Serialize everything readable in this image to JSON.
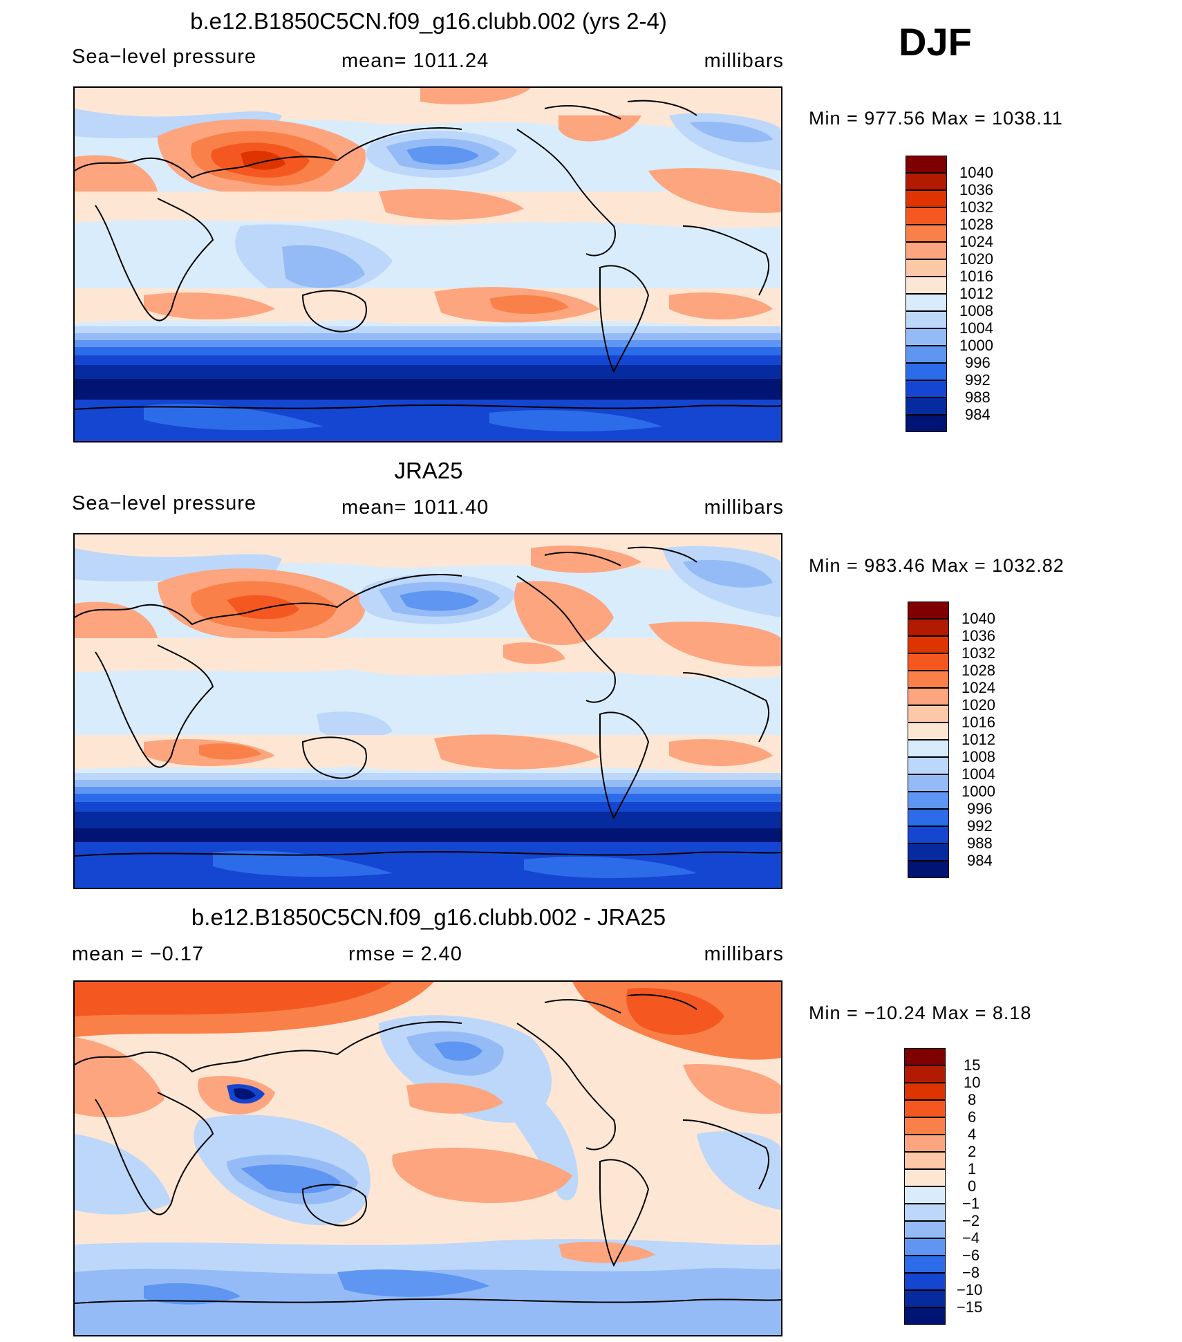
{
  "season": "DJF",
  "panels": [
    {
      "id": "model",
      "title": "b.e12.B1850C5CN.f09_g16.clubb.002 (yrs 2-4)",
      "left_label": "Sea−level pressure",
      "center_label": "mean=  1011.24",
      "units": "millibars",
      "min_max": "Min  =  977.56  Max  =  1038.11",
      "legend_labels": [
        "1040",
        "1036",
        "1032",
        "1028",
        "1024",
        "1020",
        "1016",
        "1012",
        "1008",
        "1004",
        "1000",
        "996",
        "992",
        "988",
        "984"
      ],
      "legend_colors": [
        "#7f0000",
        "#b31b00",
        "#dd3400",
        "#f45820",
        "#f98048",
        "#fca57e",
        "#fdc8a7",
        "#fde6d4",
        "#d9ecfc",
        "#bcd7fa",
        "#95bbf7",
        "#5e96f2",
        "#2d6ce9",
        "#1546d2",
        "#062b9e",
        "#001473"
      ]
    },
    {
      "id": "obs",
      "title": "JRA25",
      "left_label": "Sea−level pressure",
      "center_label": "mean=  1011.40",
      "units": "millibars",
      "min_max": "Min  =  983.46  Max  =  1032.82",
      "legend_labels": [
        "1040",
        "1036",
        "1032",
        "1028",
        "1024",
        "1020",
        "1016",
        "1012",
        "1008",
        "1004",
        "1000",
        "996",
        "992",
        "988",
        "984"
      ],
      "legend_colors": [
        "#7f0000",
        "#b31b00",
        "#dd3400",
        "#f45820",
        "#f98048",
        "#fca57e",
        "#fdc8a7",
        "#fde6d4",
        "#d9ecfc",
        "#bcd7fa",
        "#95bbf7",
        "#5e96f2",
        "#2d6ce9",
        "#1546d2",
        "#062b9e",
        "#001473"
      ]
    },
    {
      "id": "diff",
      "title": "b.e12.B1850C5CN.f09_g16.clubb.002 - JRA25",
      "left_label": "mean  =    −0.17",
      "center_label": "rmse  =     2.40",
      "units": "millibars",
      "min_max": "Min  =  −10.24  Max  =      8.18",
      "legend_labels": [
        "15",
        "10",
        "8",
        "6",
        "4",
        "2",
        "1",
        "0",
        "−1",
        "−2",
        "−4",
        "−6",
        "−8",
        "−10",
        "−15"
      ],
      "legend_colors": [
        "#7f0000",
        "#b31b00",
        "#dd3400",
        "#f45820",
        "#f98048",
        "#fca57e",
        "#fdc8a7",
        "#fde6d4",
        "#d9ecfc",
        "#bcd7fa",
        "#95bbf7",
        "#5e96f2",
        "#2d6ce9",
        "#1546d2",
        "#062b9e",
        "#001473"
      ]
    }
  ],
  "colors": {
    "coast": "#000000",
    "ocean_mid": "#d9ecfc",
    "warm_light": "#fde6d4"
  }
}
